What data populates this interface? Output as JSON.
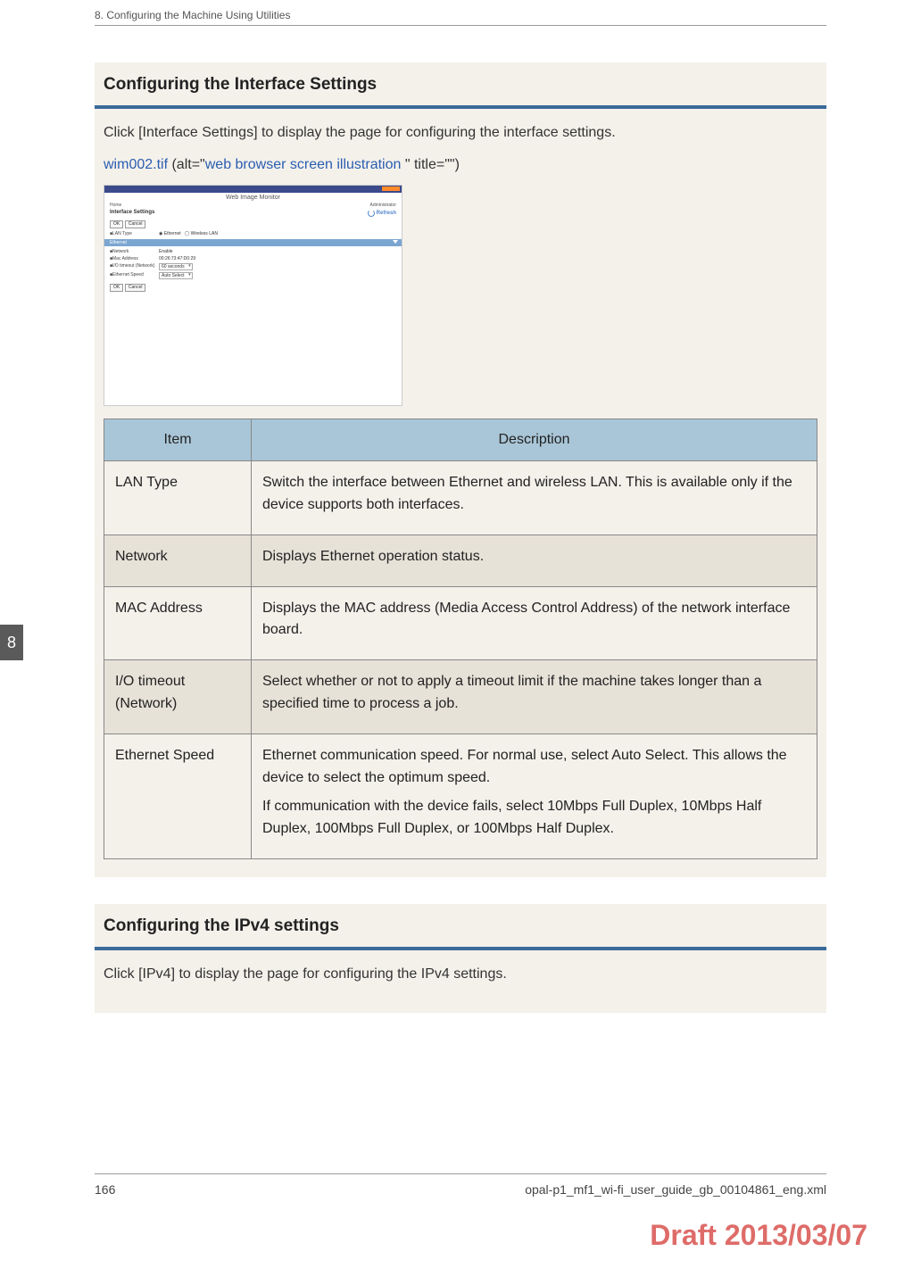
{
  "header": {
    "chapter_line": "8. Configuring the Machine Using Utilities"
  },
  "side_tab": {
    "label": "8"
  },
  "section1": {
    "title": "Configuring the Interface Settings",
    "intro": "Click [Interface Settings] to display the page for configuring the interface settings.",
    "img_ref_prefix": "wim002.tif",
    "img_ref_mid": " (alt=\"",
    "img_ref_link": "web browser screen illustration",
    "img_ref_suffix": " \" title=\"\")",
    "screenshot": {
      "app_title": "Web Image Monitor",
      "home_label": "Home",
      "admin_label": "Administrator",
      "page_heading": "Interface Settings",
      "refresh_label": "Refresh",
      "ok": "OK",
      "cancel": "Cancel",
      "lan_type_label": "■LAN Type",
      "lan_ethernet": "◉ Ethernet",
      "lan_wireless": "◯ Wireless LAN",
      "ethernet_bar": "Ethernet",
      "network_label": "■Network",
      "network_value": "Enable",
      "mac_label": "■Mac Address",
      "mac_value": "00:26:73:47:D0:29",
      "io_label": "■I/O timeout (Network)",
      "io_value": "60 seconds",
      "speed_label": "■Ethernet Speed",
      "speed_value": "Auto Select"
    },
    "table": {
      "columns": [
        "Item",
        "Description"
      ],
      "rows": [
        {
          "item": "LAN Type",
          "desc": [
            "Switch the interface between Ethernet and wireless LAN. This is available only if the device supports both interfaces."
          ]
        },
        {
          "item": "Network",
          "desc": [
            "Displays Ethernet operation status."
          ]
        },
        {
          "item": "MAC Address",
          "desc": [
            "Displays the MAC address (Media Access Control Address) of the network interface board."
          ]
        },
        {
          "item": "I/O timeout (Network)",
          "desc": [
            "Select whether or not to apply a timeout limit if the machine takes longer than a specified time to process a job."
          ]
        },
        {
          "item": "Ethernet Speed",
          "desc": [
            "Ethernet communication speed. For normal use, select Auto Select. This allows the device to select the optimum speed.",
            "If communication with the device fails, select 10Mbps Full Duplex, 10Mbps Half Duplex, 100Mbps Full Duplex, or 100Mbps Half Duplex."
          ]
        }
      ]
    }
  },
  "section2": {
    "title": "Configuring the IPv4 settings",
    "intro": "Click [IPv4] to display the page for configuring the IPv4 settings."
  },
  "footer": {
    "page_number": "166",
    "source_file": "opal-p1_mf1_wi-fi_user_guide_gb_00104861_eng.xml"
  },
  "draft_stamp": "Draft 2013/03/07",
  "colors": {
    "section_rule": "#3a6a9a",
    "table_header_bg": "#a9c6d8",
    "row_alt_bg": "#e7e2d8",
    "page_bg": "#f4f1eb",
    "link": "#2a5db0",
    "draft": "#d9534f"
  }
}
